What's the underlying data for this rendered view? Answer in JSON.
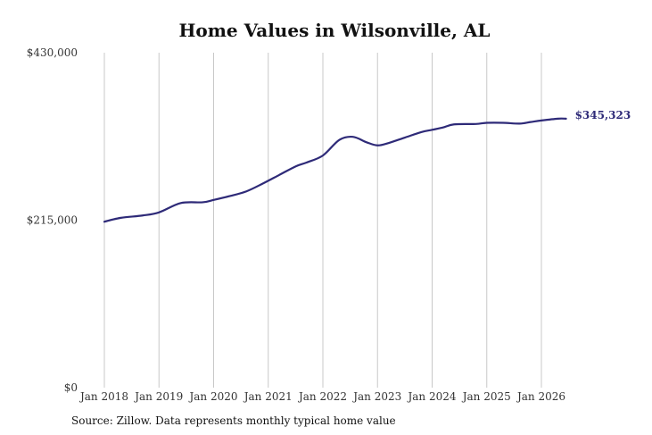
{
  "chart_data": {
    "type": "line",
    "title": "Home Values in Wilsonville, AL",
    "xlabel": "",
    "ylabel": "",
    "ylim": [
      0,
      430000
    ],
    "yticks": [
      "$0",
      "$215,000",
      "$430,000"
    ],
    "ytick_values": [
      0,
      215000,
      430000
    ],
    "xticks": [
      "Jan 2018",
      "Jan 2019",
      "Jan 2020",
      "Jan 2021",
      "Jan 2022",
      "Jan 2023",
      "Jan 2024",
      "Jan 2025",
      "Jan 2026"
    ],
    "xtick_values": [
      2018,
      2019,
      2020,
      2021,
      2022,
      2023,
      2024,
      2025,
      2026
    ],
    "grid": "vertical",
    "series": [
      {
        "color": "#2e2a78",
        "x": [
          2018.0,
          2018.3,
          2018.7,
          2019.0,
          2019.4,
          2019.8,
          2020.0,
          2020.3,
          2020.6,
          2020.9,
          2021.2,
          2021.5,
          2021.7,
          2022.0,
          2022.3,
          2022.55,
          2022.8,
          2023.0,
          2023.2,
          2023.5,
          2023.8,
          2024.0,
          2024.2,
          2024.4,
          2024.8,
          2025.0,
          2025.3,
          2025.6,
          2025.8,
          2026.0,
          2026.3,
          2026.45
        ],
        "y": [
          213000,
          218000,
          221000,
          225000,
          237000,
          238000,
          241000,
          246000,
          252000,
          262000,
          273000,
          284000,
          289000,
          298000,
          318000,
          322000,
          315000,
          311000,
          314000,
          321000,
          328000,
          331000,
          334000,
          338000,
          338500,
          340000,
          340000,
          339000,
          341000,
          343000,
          345323,
          345323
        ]
      }
    ],
    "end_label": "$345,323"
  },
  "source_text": "Source: Zillow. Data represents monthly typical home value"
}
